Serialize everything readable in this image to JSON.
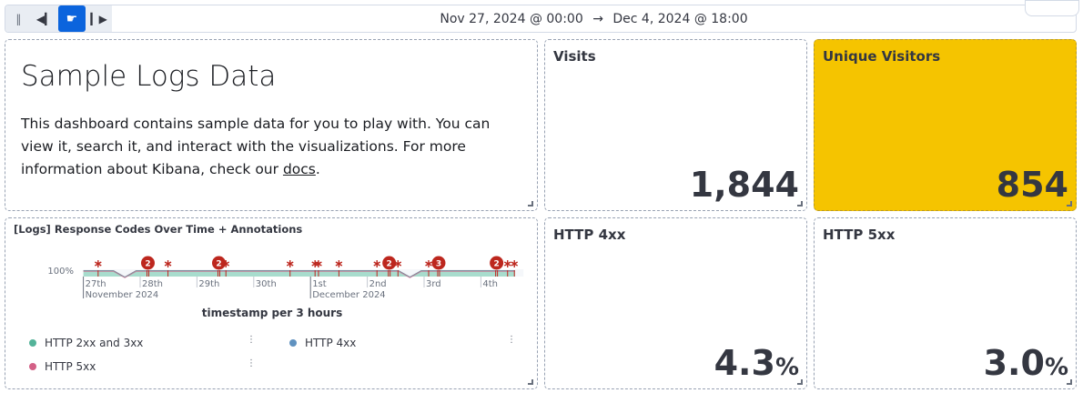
{
  "toolbar": {
    "controls": [
      {
        "name": "pause-icon",
        "glyph": "‖"
      },
      {
        "name": "step-back-icon",
        "glyph": "◀▎"
      },
      {
        "name": "play-icon",
        "glyph": "☛",
        "active": true
      },
      {
        "name": "step-forward-icon",
        "glyph": "▎▶"
      }
    ],
    "time_start": "Nov 27, 2024 @ 00:00",
    "arrow": "→",
    "time_end": "Dec 4, 2024 @ 18:00"
  },
  "markdown": {
    "title": "Sample Logs Data",
    "text_before": "This dashboard contains sample data for you to play with. You can view it, search it, and interact with the visualizations. For more information about Kibana, check our ",
    "link": "docs",
    "text_after": "."
  },
  "metrics": [
    {
      "title": "Visits",
      "value": "1,844",
      "unit": ""
    },
    {
      "title": "Unique Visitors",
      "value": "854",
      "unit": "",
      "bg": "#f5c400"
    },
    {
      "title": "HTTP 4xx",
      "value": "4.3",
      "unit": "%"
    },
    {
      "title": "HTTP 5xx",
      "value": "3.0",
      "unit": "%"
    }
  ],
  "chart_data": {
    "type": "area",
    "title": "[Logs] Response Codes Over Time + Annotations",
    "xlabel": "timestamp per 3 hours",
    "ylabel": "",
    "stacking": "percentage",
    "y_tick": "100%",
    "x_ticks": [
      {
        "label": "27th",
        "sub": "November 2024",
        "day": 0
      },
      {
        "label": "28th",
        "day": 1
      },
      {
        "label": "29th",
        "day": 2
      },
      {
        "label": "30th",
        "day": 3
      },
      {
        "label": "1st",
        "sub": "December 2024",
        "day": 4
      },
      {
        "label": "2nd",
        "day": 5
      },
      {
        "label": "3rd",
        "day": 6
      },
      {
        "label": "4th",
        "day": 7
      }
    ],
    "x_range_days": [
      0,
      7.75
    ],
    "gaps_days": [
      0.73,
      5.75
    ],
    "annotations": [
      {
        "day": 0.26,
        "count": 1
      },
      {
        "day": 1.12,
        "count": 2
      },
      {
        "day": 1.49,
        "count": 1
      },
      {
        "day": 2.37,
        "count": 2
      },
      {
        "day": 2.51,
        "count": 1
      },
      {
        "day": 3.64,
        "count": 1
      },
      {
        "day": 4.08,
        "count": 1
      },
      {
        "day": 4.14,
        "count": 1
      },
      {
        "day": 4.5,
        "count": 1
      },
      {
        "day": 5.17,
        "count": 1
      },
      {
        "day": 5.37,
        "count": 2
      },
      {
        "day": 5.54,
        "count": 1
      },
      {
        "day": 6.08,
        "count": 1
      },
      {
        "day": 6.24,
        "count": 3
      },
      {
        "day": 7.26,
        "count": 2
      },
      {
        "day": 7.47,
        "count": 1
      },
      {
        "day": 7.59,
        "count": 1
      }
    ],
    "legend": [
      {
        "name": "HTTP 2xx and 3xx",
        "color": "#54b399"
      },
      {
        "name": "HTTP 4xx",
        "color": "#6092c0"
      },
      {
        "name": "HTTP 5xx",
        "color": "#d36086"
      }
    ],
    "annotation_color": "#bd271e"
  }
}
